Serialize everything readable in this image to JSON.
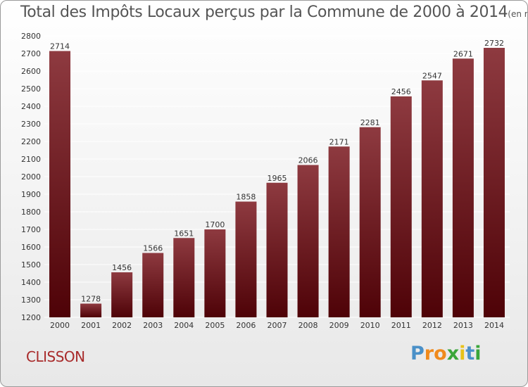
{
  "title": "Total des Impôts Locaux perçus par la Commune de 2000 à 2014",
  "title_unit": "(en milliers d'€)",
  "commune": "CLISSON",
  "logo": {
    "text": "Proxiti",
    "letters": [
      {
        "ch": "P",
        "color": "#4a90c8"
      },
      {
        "ch": "r",
        "color": "#f08a1c"
      },
      {
        "ch": "o",
        "color": "#f08a1c"
      },
      {
        "ch": "x",
        "color": "#3aa63a"
      },
      {
        "ch": "i",
        "color": "#e8c21a"
      },
      {
        "ch": "t",
        "color": "#4a90c8"
      },
      {
        "ch": "i",
        "color": "#3aa63a"
      }
    ]
  },
  "colors": {
    "bar_top": "#8e3a40",
    "bar_bottom": "#4e0207",
    "grid": "#ffffff",
    "axis_text": "#333333",
    "commune": "#a82a2a"
  },
  "chart_data": {
    "type": "bar",
    "categories": [
      "2000",
      "2001",
      "2002",
      "2003",
      "2004",
      "2005",
      "2006",
      "2007",
      "2008",
      "2009",
      "2010",
      "2011",
      "2012",
      "2013",
      "2014"
    ],
    "values": [
      2714,
      1278,
      1456,
      1566,
      1651,
      1700,
      1858,
      1965,
      2066,
      2171,
      2281,
      2456,
      2547,
      2671,
      2732
    ],
    "ylim": [
      1200,
      2800
    ],
    "yticks": [
      1200,
      1300,
      1400,
      1500,
      1600,
      1700,
      1800,
      1900,
      2000,
      2100,
      2200,
      2300,
      2400,
      2500,
      2600,
      2700,
      2800
    ],
    "grid": true,
    "data_labels": true
  }
}
